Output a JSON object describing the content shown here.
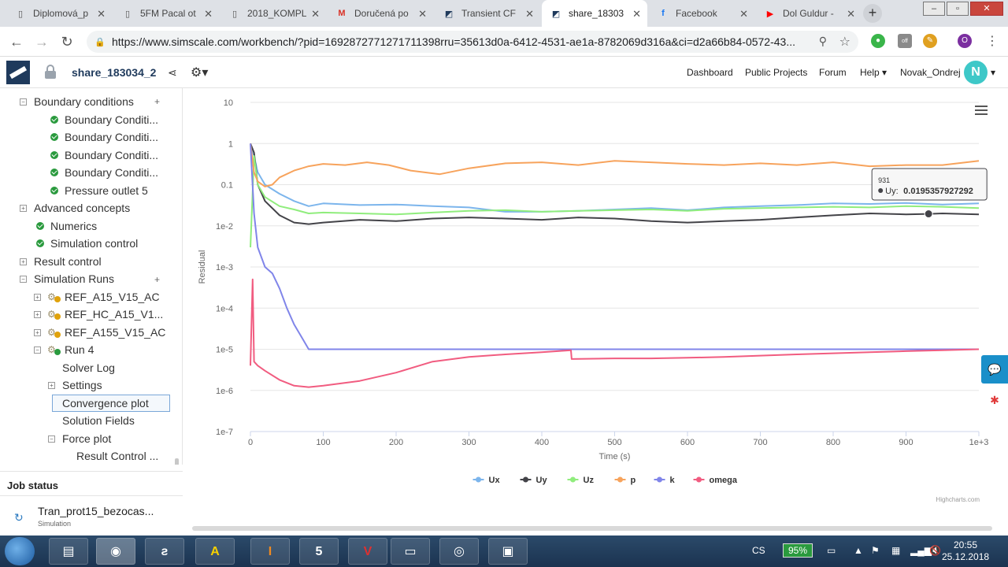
{
  "browser": {
    "tabs": [
      {
        "label": "Diplomová_p",
        "fav": "doc"
      },
      {
        "label": "5FM Pacal ot",
        "fav": "doc"
      },
      {
        "label": "2018_KOMPL",
        "fav": "doc"
      },
      {
        "label": "Doručená po",
        "fav": "gmail"
      },
      {
        "label": "Transient CF",
        "fav": "simscale"
      },
      {
        "label": "share_18303",
        "fav": "simscale",
        "active": true
      },
      {
        "label": "Facebook",
        "fav": "facebook"
      },
      {
        "label": "Dol Guldur -",
        "fav": "youtube"
      }
    ],
    "url": "https://www.simscale.com/workbench/?pid=1692872771271711398rru=35613d0a-6412-4531-ae1a-8782069d316a&ci=d2a66b84-0572-43...",
    "profile_initial": "O",
    "ext_badge": "off"
  },
  "header": {
    "project_title": "share_183034_2",
    "nav": [
      "Dashboard",
      "Public Projects",
      "Forum",
      "Help"
    ],
    "username": "Novak_Ondrej",
    "avatar_initial": "N"
  },
  "tree": {
    "boundary_conditions": "Boundary conditions",
    "bc_items": [
      "Boundary Conditi...",
      "Boundary Conditi...",
      "Boundary Conditi...",
      "Boundary Conditi...",
      "Pressure outlet 5"
    ],
    "advanced_concepts": "Advanced concepts",
    "numerics": "Numerics",
    "simulation_control": "Simulation control",
    "result_control": "Result control",
    "simulation_runs": "Simulation Runs",
    "runs": [
      "REF_A15_V15_AC",
      "REF_HC_A15_V1...",
      "REF_A155_V15_AC",
      "Run 4"
    ],
    "run4_children": [
      "Solver Log",
      "Settings",
      "Convergence plot",
      "Solution Fields",
      "Force plot",
      "Result Control ..."
    ]
  },
  "job": {
    "title": "Job status",
    "name": "Tran_prot15_bezocas...",
    "type": "Simulation"
  },
  "chart_data": {
    "type": "line",
    "title": "",
    "xlabel": "Time (s)",
    "ylabel": "Residual",
    "log_y": true,
    "xlim": [
      0,
      1000
    ],
    "ylim": [
      1e-07,
      10
    ],
    "x_ticks": [
      "0",
      "100",
      "200",
      "300",
      "400",
      "500",
      "600",
      "700",
      "800",
      "900",
      "1e+3"
    ],
    "y_ticks": [
      "10",
      "1",
      "0.1",
      "1e-2",
      "1e-3",
      "1e-4",
      "1e-5",
      "1e-6",
      "1e-7"
    ],
    "series": [
      {
        "name": "Ux",
        "color": "#7cb5ec",
        "x": [
          0,
          5,
          10,
          20,
          40,
          60,
          80,
          100,
          150,
          200,
          250,
          300,
          350,
          400,
          450,
          500,
          550,
          600,
          650,
          700,
          750,
          800,
          850,
          900,
          950,
          1000
        ],
        "y": [
          1,
          0.5,
          0.2,
          0.1,
          0.06,
          0.04,
          0.03,
          0.035,
          0.032,
          0.033,
          0.03,
          0.028,
          0.022,
          0.022,
          0.023,
          0.025,
          0.027,
          0.024,
          0.028,
          0.03,
          0.032,
          0.035,
          0.034,
          0.036,
          0.033,
          0.035
        ]
      },
      {
        "name": "Uy",
        "color": "#434348",
        "x": [
          0,
          5,
          10,
          20,
          40,
          60,
          80,
          100,
          150,
          200,
          250,
          300,
          350,
          400,
          450,
          500,
          550,
          600,
          650,
          700,
          750,
          800,
          850,
          900,
          931,
          950,
          1000
        ],
        "y": [
          1,
          0.6,
          0.1,
          0.04,
          0.018,
          0.012,
          0.011,
          0.012,
          0.014,
          0.013,
          0.015,
          0.016,
          0.015,
          0.014,
          0.016,
          0.015,
          0.013,
          0.012,
          0.013,
          0.014,
          0.016,
          0.018,
          0.02,
          0.019,
          0.0195,
          0.02,
          0.019
        ]
      },
      {
        "name": "Uz",
        "color": "#90ed7d",
        "x": [
          0,
          5,
          10,
          20,
          40,
          60,
          80,
          100,
          150,
          200,
          250,
          300,
          350,
          400,
          450,
          500,
          550,
          600,
          650,
          700,
          750,
          800,
          850,
          900,
          950,
          1000
        ],
        "y": [
          0.003,
          0.5,
          0.1,
          0.05,
          0.03,
          0.025,
          0.02,
          0.021,
          0.02,
          0.019,
          0.021,
          0.023,
          0.024,
          0.022,
          0.023,
          0.024,
          0.025,
          0.023,
          0.026,
          0.027,
          0.028,
          0.029,
          0.028,
          0.03,
          0.029,
          0.027
        ]
      },
      {
        "name": "p",
        "color": "#f7a35c",
        "x": [
          0,
          5,
          10,
          20,
          30,
          40,
          60,
          80,
          100,
          130,
          160,
          190,
          220,
          260,
          300,
          350,
          400,
          450,
          500,
          550,
          600,
          650,
          700,
          750,
          800,
          850,
          900,
          950,
          1000
        ],
        "y": [
          1,
          0.2,
          0.12,
          0.09,
          0.1,
          0.15,
          0.22,
          0.28,
          0.32,
          0.3,
          0.35,
          0.3,
          0.22,
          0.18,
          0.25,
          0.33,
          0.35,
          0.3,
          0.38,
          0.35,
          0.32,
          0.3,
          0.33,
          0.3,
          0.35,
          0.28,
          0.3,
          0.3,
          0.38
        ]
      },
      {
        "name": "k",
        "color": "#8085e9",
        "x": [
          0,
          5,
          10,
          20,
          30,
          40,
          50,
          60,
          70,
          80,
          100,
          150,
          200,
          250,
          300,
          350,
          400,
          450,
          500,
          550,
          600,
          650,
          700,
          750,
          800,
          850,
          900,
          950,
          1000
        ],
        "y": [
          1,
          0.02,
          0.003,
          0.001,
          0.0007,
          0.0003,
          0.0001,
          4e-05,
          2e-05,
          1e-05,
          1e-05,
          1e-05,
          1e-05,
          1e-05,
          1e-05,
          1e-05,
          1e-05,
          1e-05,
          1e-05,
          1e-05,
          1e-05,
          1e-05,
          1e-05,
          1e-05,
          1e-05,
          1e-05,
          1e-05,
          1e-05,
          1e-05
        ]
      },
      {
        "name": "omega",
        "color": "#f15c80",
        "x": [
          0,
          3,
          5,
          10,
          20,
          40,
          60,
          80,
          100,
          150,
          200,
          250,
          300,
          350,
          400,
          440,
          441,
          500,
          550,
          600,
          650,
          700,
          750,
          800,
          850,
          900,
          950,
          1000
        ],
        "y": [
          4e-06,
          0.0005,
          5e-06,
          4e-06,
          3e-06,
          1.8e-06,
          1.3e-06,
          1.2e-06,
          1.3e-06,
          1.7e-06,
          2.7e-06,
          5e-06,
          6.5e-06,
          7.5e-06,
          8.5e-06,
          9.5e-06,
          5.8e-06,
          6e-06,
          6e-06,
          6.2e-06,
          6.5e-06,
          7e-06,
          7.5e-06,
          8e-06,
          8.5e-06,
          9e-06,
          9.5e-06,
          1e-05
        ]
      }
    ],
    "legend": "bottom-center",
    "tooltip": {
      "x": "931",
      "series": "Uy",
      "value": "0.0195357927292"
    },
    "credit": "Highcharts.com"
  },
  "taskbar": {
    "battery": "95%",
    "lang": "CS",
    "time": "20:55",
    "date": "25.12.2018"
  }
}
